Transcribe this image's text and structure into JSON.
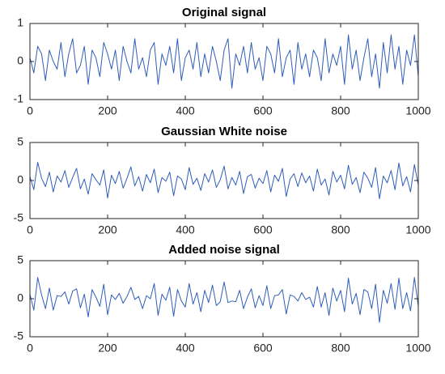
{
  "chart_data": [
    {
      "type": "line",
      "title": "Original signal",
      "color": "#2f5db8",
      "x": [
        0,
        10,
        20,
        30,
        40,
        50,
        60,
        70,
        80,
        90,
        100,
        110,
        120,
        130,
        140,
        150,
        160,
        170,
        180,
        190,
        200,
        210,
        220,
        230,
        240,
        250,
        260,
        270,
        280,
        290,
        300,
        310,
        320,
        330,
        340,
        350,
        360,
        370,
        380,
        390,
        400,
        410,
        420,
        430,
        440,
        450,
        460,
        470,
        480,
        490,
        500,
        510,
        520,
        530,
        540,
        550,
        560,
        570,
        580,
        590,
        600,
        610,
        620,
        630,
        640,
        650,
        660,
        670,
        680,
        690,
        700,
        710,
        720,
        730,
        740,
        750,
        760,
        770,
        780,
        790,
        800,
        810,
        820,
        830,
        840,
        850,
        860,
        870,
        880,
        890,
        900,
        910,
        920,
        930,
        940,
        950,
        960,
        970,
        980,
        990,
        1000
      ],
      "values": [
        0.1,
        -0.3,
        0.4,
        0.2,
        -0.5,
        0.3,
        0.0,
        -0.2,
        0.5,
        -0.4,
        0.2,
        0.6,
        -0.3,
        -0.1,
        0.4,
        -0.6,
        0.3,
        0.1,
        -0.4,
        0.5,
        0.2,
        -0.2,
        0.3,
        -0.5,
        0.4,
        0.0,
        -0.3,
        0.6,
        -0.2,
        0.1,
        -0.4,
        0.3,
        0.5,
        -0.6,
        0.2,
        -0.1,
        0.4,
        -0.3,
        0.6,
        -0.5,
        0.1,
        0.3,
        -0.2,
        0.5,
        -0.4,
        0.2,
        -0.3,
        0.4,
        0.0,
        -0.5,
        0.3,
        0.6,
        -0.7,
        0.2,
        -0.1,
        0.4,
        -0.3,
        0.5,
        -0.2,
        0.1,
        -0.5,
        0.4,
        0.2,
        -0.3,
        0.6,
        -0.4,
        0.1,
        0.3,
        -0.6,
        0.5,
        -0.2,
        0.2,
        -0.4,
        0.3,
        0.1,
        -0.5,
        0.6,
        -0.3,
        0.2,
        -0.1,
        0.4,
        -0.6,
        0.7,
        -0.2,
        0.3,
        -0.5,
        0.1,
        0.6,
        -0.4,
        0.2,
        -0.7,
        0.5,
        -0.3,
        0.7,
        -0.2,
        0.4,
        -0.6,
        0.3,
        -0.1,
        0.7,
        -0.4
      ],
      "xlim": [
        0,
        1000
      ],
      "xticks": [
        0,
        200,
        400,
        600,
        800,
        1000
      ],
      "ylim": [
        -1,
        1
      ],
      "yticks": [
        -1,
        0,
        1
      ]
    },
    {
      "type": "line",
      "title": "Gaussian White noise",
      "color": "#2f5db8",
      "x": [
        0,
        10,
        20,
        30,
        40,
        50,
        60,
        70,
        80,
        90,
        100,
        110,
        120,
        130,
        140,
        150,
        160,
        170,
        180,
        190,
        200,
        210,
        220,
        230,
        240,
        250,
        260,
        270,
        280,
        290,
        300,
        310,
        320,
        330,
        340,
        350,
        360,
        370,
        380,
        390,
        400,
        410,
        420,
        430,
        440,
        450,
        460,
        470,
        480,
        490,
        500,
        510,
        520,
        530,
        540,
        550,
        560,
        570,
        580,
        590,
        600,
        610,
        620,
        630,
        640,
        650,
        660,
        670,
        680,
        690,
        700,
        710,
        720,
        730,
        740,
        750,
        760,
        770,
        780,
        790,
        800,
        810,
        820,
        830,
        840,
        850,
        860,
        870,
        880,
        890,
        900,
        910,
        920,
        930,
        940,
        950,
        960,
        970,
        980,
        990,
        1000
      ],
      "values": [
        0.5,
        -1.2,
        2.4,
        0.3,
        -0.8,
        1.1,
        -1.5,
        0.6,
        -0.2,
        1.3,
        -0.9,
        0.4,
        1.6,
        -1.1,
        0.2,
        -1.8,
        0.9,
        0.1,
        -0.6,
        1.4,
        -2.3,
        0.7,
        -0.4,
        1.2,
        -1.0,
        0.3,
        1.8,
        -0.7,
        0.5,
        -1.4,
        0.8,
        -0.3,
        1.5,
        -1.6,
        0.4,
        -0.1,
        1.1,
        -2.0,
        0.6,
        0.2,
        -1.2,
        1.7,
        -0.5,
        0.3,
        -1.3,
        0.9,
        -0.2,
        1.4,
        -0.9,
        0.1,
        1.9,
        -1.1,
        0.4,
        -0.6,
        1.2,
        -1.7,
        0.5,
        0.8,
        -1.0,
        0.3,
        -0.4,
        1.3,
        -1.5,
        0.7,
        -0.1,
        1.6,
        -2.1,
        0.2,
        0.9,
        -0.8,
        1.0,
        -0.3,
        0.6,
        -1.4,
        1.5,
        -0.6,
        0.2,
        -1.9,
        1.2,
        -0.2,
        0.7,
        -1.1,
        2.0,
        -0.5,
        0.4,
        -1.6,
        1.1,
        0.3,
        -0.9,
        1.7,
        -2.4,
        0.6,
        -0.3,
        1.3,
        -1.2,
        2.3,
        -0.7,
        0.5,
        -1.5,
        2.1,
        -0.6
      ],
      "xlim": [
        0,
        1000
      ],
      "xticks": [
        0,
        200,
        400,
        600,
        800,
        1000
      ],
      "ylim": [
        -5,
        5
      ],
      "yticks": [
        -5,
        0,
        5
      ]
    },
    {
      "type": "line",
      "title": "Added noise signal",
      "color": "#2f5db8",
      "x": [
        0,
        10,
        20,
        30,
        40,
        50,
        60,
        70,
        80,
        90,
        100,
        110,
        120,
        130,
        140,
        150,
        160,
        170,
        180,
        190,
        200,
        210,
        220,
        230,
        240,
        250,
        260,
        270,
        280,
        290,
        300,
        310,
        320,
        330,
        340,
        350,
        360,
        370,
        380,
        390,
        400,
        410,
        420,
        430,
        440,
        450,
        460,
        470,
        480,
        490,
        500,
        510,
        520,
        530,
        540,
        550,
        560,
        570,
        580,
        590,
        600,
        610,
        620,
        630,
        640,
        650,
        660,
        670,
        680,
        690,
        700,
        710,
        720,
        730,
        740,
        750,
        760,
        770,
        780,
        790,
        800,
        810,
        820,
        830,
        840,
        850,
        860,
        870,
        880,
        890,
        900,
        910,
        920,
        930,
        940,
        950,
        960,
        970,
        980,
        990,
        1000
      ],
      "values": [
        0.6,
        -1.5,
        2.8,
        0.5,
        -1.3,
        1.4,
        -1.5,
        0.4,
        0.3,
        0.9,
        -0.7,
        1.0,
        1.3,
        -1.2,
        0.6,
        -2.4,
        1.2,
        0.2,
        -1.0,
        1.9,
        -2.1,
        0.5,
        -0.1,
        0.7,
        -0.6,
        0.3,
        1.5,
        -0.1,
        0.3,
        -1.3,
        0.4,
        0.0,
        2.0,
        -2.2,
        0.6,
        -0.2,
        1.5,
        -2.3,
        1.2,
        -0.3,
        -1.1,
        2.0,
        -0.7,
        0.8,
        -1.7,
        1.1,
        -0.5,
        1.8,
        -0.9,
        -0.4,
        2.2,
        -0.5,
        -0.3,
        -0.4,
        1.1,
        -1.3,
        0.2,
        1.3,
        -1.2,
        0.4,
        -0.9,
        1.7,
        -1.3,
        0.4,
        0.5,
        1.2,
        -2.0,
        0.5,
        0.3,
        -0.3,
        0.8,
        -0.1,
        0.2,
        -1.1,
        1.6,
        -1.1,
        0.8,
        -2.2,
        1.4,
        -0.3,
        1.1,
        -1.7,
        2.7,
        -0.7,
        0.7,
        -2.1,
        1.2,
        0.9,
        -1.3,
        1.9,
        -3.1,
        1.1,
        -0.6,
        2.0,
        -1.4,
        2.7,
        -1.3,
        0.8,
        -1.6,
        2.8,
        -1.0
      ],
      "xlim": [
        0,
        1000
      ],
      "xticks": [
        0,
        200,
        400,
        600,
        800,
        1000
      ],
      "ylim": [
        -5,
        5
      ],
      "yticks": [
        -5,
        0,
        5
      ]
    }
  ]
}
